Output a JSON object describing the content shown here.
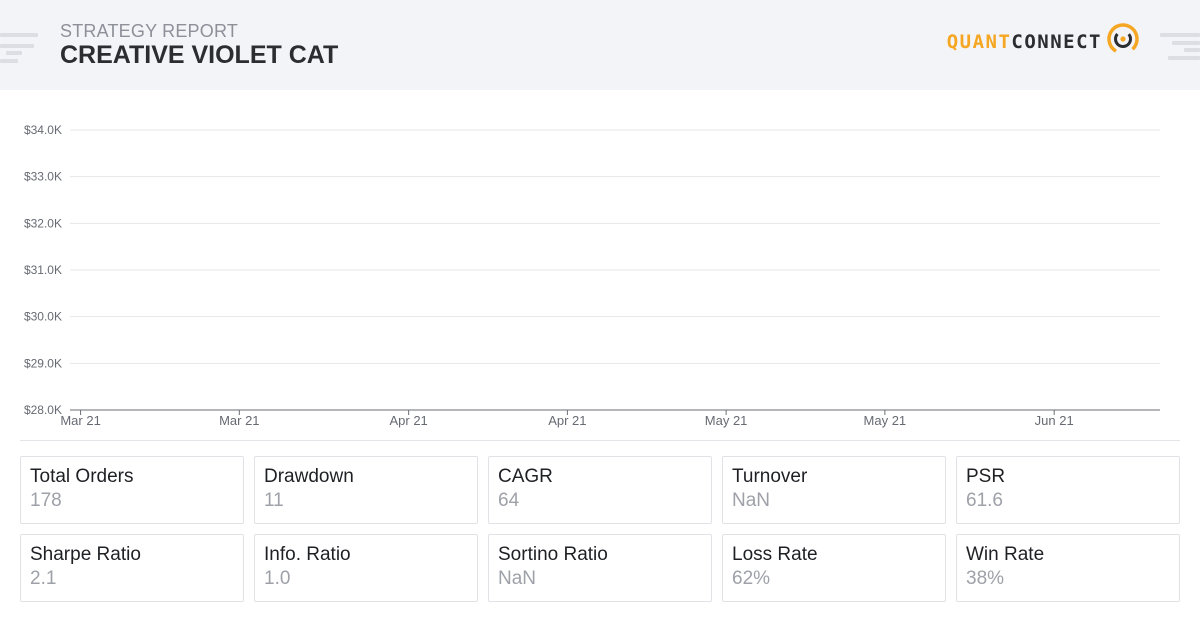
{
  "header": {
    "eyebrow": "STRATEGY REPORT",
    "title": "CREATIVE VIOLET CAT",
    "logo_part1": "QUANT",
    "logo_part2": "CONNECT"
  },
  "chart_data": {
    "type": "line",
    "title": "",
    "xlabel": "",
    "ylabel": "",
    "y_ticks": [
      "$28.0K",
      "$29.0K",
      "$30.0K",
      "$31.0K",
      "$32.0K",
      "$33.0K",
      "$34.0K"
    ],
    "y_tick_values": [
      28000,
      29000,
      30000,
      31000,
      32000,
      33000,
      34000
    ],
    "ylim": [
      28000,
      34000
    ],
    "x_ticks": [
      "Mar 21",
      "Mar 21",
      "Apr 21",
      "Apr 21",
      "May 21",
      "May 21",
      "Jun 21"
    ],
    "x_tick_dates": [
      "2021-03-01",
      "2021-03-16",
      "2021-04-01",
      "2021-04-16",
      "2021-05-01",
      "2021-05-16",
      "2021-06-01"
    ],
    "xlim": [
      "2021-02-28",
      "2021-06-11"
    ],
    "grid": true,
    "series": []
  },
  "stats": [
    {
      "label": "Total Orders",
      "value": "178"
    },
    {
      "label": "Drawdown",
      "value": "11"
    },
    {
      "label": "CAGR",
      "value": "64"
    },
    {
      "label": "Turnover",
      "value": "NaN"
    },
    {
      "label": "PSR",
      "value": "61.6"
    },
    {
      "label": "Sharpe Ratio",
      "value": "2.1"
    },
    {
      "label": "Info. Ratio",
      "value": "1.0"
    },
    {
      "label": "Sortino Ratio",
      "value": "NaN"
    },
    {
      "label": "Loss Rate",
      "value": "62%"
    },
    {
      "label": "Win Rate",
      "value": "38%"
    }
  ],
  "colors": {
    "accent": "#f5a623",
    "text_dark": "#2b2d31",
    "muted": "#9ea1a8"
  }
}
